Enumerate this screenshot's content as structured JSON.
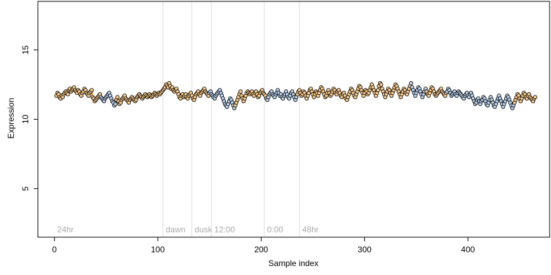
{
  "chart_data": {
    "type": "scatter",
    "title": "",
    "xlabel": "Sample index",
    "ylabel": "Expression",
    "xlim": [
      -16,
      479
    ],
    "ylim": [
      1.5,
      18.5
    ],
    "x_ticks": [
      0,
      100,
      200,
      300,
      400
    ],
    "y_ticks": [
      5,
      10,
      15
    ],
    "grid": false,
    "legend": "none",
    "colors": {
      "point_stroke": "#000000",
      "light_orange": "#f8c98a",
      "light_blue": "#b8d0ec",
      "orange_line": "#f5a623",
      "blue_line": "#7fa6d6",
      "region_line": "#dddddd",
      "region_label": "#aaaaaa"
    },
    "regions": [
      {
        "label": "24hr",
        "x": 0
      },
      {
        "label": "dawn",
        "x": 105
      },
      {
        "label": "dusk",
        "x": 133
      },
      {
        "label": "12:00",
        "x": 152
      },
      {
        "label": "0:00",
        "x": 203
      },
      {
        "label": "48hr",
        "x": 237
      }
    ],
    "series": [
      {
        "values_y": [
          11.7,
          11.9,
          11.8,
          11.6,
          11.5,
          11.7,
          11.6,
          11.8,
          11.9,
          12.0,
          11.9,
          11.8,
          12.1,
          12.2,
          12.0,
          12.1,
          12.2,
          12.3,
          12.1,
          12.0,
          11.9,
          12.1,
          12.0,
          11.8,
          11.7,
          11.9,
          12.0,
          12.2,
          12.1,
          11.9,
          11.8,
          11.7,
          11.9,
          12.0,
          12.1,
          11.6,
          11.5,
          11.3,
          11.4,
          11.5,
          11.6,
          11.7,
          11.8,
          11.6,
          11.5,
          11.4,
          11.3,
          11.5,
          11.6,
          11.7,
          11.8,
          11.9,
          11.7,
          11.5,
          11.3,
          11.2,
          11.0,
          11.1,
          11.4,
          11.6,
          11.3,
          11.1,
          11.2,
          11.4,
          11.5,
          11.6,
          11.7,
          11.5,
          11.4,
          11.3,
          11.2,
          11.4,
          11.5,
          11.6,
          11.5,
          11.4,
          11.3,
          11.4,
          11.6,
          11.7,
          11.8,
          11.7,
          11.6,
          11.5,
          11.6,
          11.7,
          11.8,
          11.7,
          11.6,
          11.7,
          11.8,
          11.7,
          11.6,
          11.7,
          11.8,
          11.9,
          11.8,
          11.7,
          11.8,
          11.9,
          11.8,
          11.9,
          12.0,
          12.1,
          12.2,
          12.3,
          12.5,
          12.4,
          12.3,
          12.6,
          12.4,
          12.2,
          12.3,
          12.1,
          12.0,
          12.1,
          12.2,
          12.0,
          11.8,
          11.6,
          11.5,
          11.7,
          11.8,
          11.6,
          11.7,
          11.8,
          11.6,
          11.5,
          11.7,
          11.8,
          11.9,
          11.7,
          11.5,
          11.4,
          11.6,
          11.8,
          11.9,
          12.0,
          11.8,
          11.7,
          11.9,
          12.0,
          12.1,
          12.2,
          12.0,
          11.9,
          11.8,
          11.7,
          11.9,
          12.0,
          11.8,
          11.7,
          11.6,
          11.5,
          11.7,
          11.8,
          11.9,
          12.0,
          12.1,
          11.9,
          11.7,
          11.5,
          11.3,
          11.1,
          11.0,
          10.9,
          11.1,
          11.3,
          11.5,
          11.4,
          11.2,
          11.0,
          10.8,
          11.0,
          11.2,
          11.4,
          11.6,
          11.8,
          12.0,
          11.7,
          11.5,
          11.3,
          11.5,
          11.7,
          11.9,
          12.0,
          11.9,
          11.8,
          11.9,
          12.0,
          11.8,
          11.7,
          11.9,
          12.0,
          11.8,
          11.6,
          11.7,
          11.9,
          12.0,
          12.1,
          11.9,
          11.8,
          11.7,
          11.5,
          11.4,
          11.6,
          11.8,
          11.9,
          12.0,
          11.8,
          11.7,
          11.6,
          11.8,
          11.9,
          12.1,
          11.9,
          11.7,
          11.8,
          11.6,
          11.5,
          11.7,
          11.8,
          12.0,
          11.8,
          11.6,
          11.5,
          11.7,
          11.9,
          12.0,
          11.8,
          11.6,
          11.4,
          11.6,
          11.8,
          12.0,
          12.1,
          11.9,
          11.7,
          11.8,
          12.0,
          11.9,
          11.7,
          11.5,
          11.7,
          11.9,
          12.1,
          12.2,
          12.0,
          11.8,
          11.6,
          11.8,
          12.0,
          11.9,
          11.7,
          11.9,
          12.1,
          12.3,
          12.2,
          12.0,
          11.8,
          11.6,
          11.7,
          11.9,
          12.1,
          11.9,
          11.7,
          11.8,
          12.0,
          12.2,
          12.1,
          11.9,
          11.8,
          12.0,
          12.1,
          11.9,
          11.7,
          11.6,
          11.8,
          11.9,
          11.7,
          11.5,
          11.4,
          11.6,
          11.8,
          12.0,
          12.2,
          12.1,
          11.9,
          11.7,
          11.6,
          11.8,
          12.0,
          12.2,
          12.4,
          12.3,
          12.1,
          11.9,
          11.7,
          11.9,
          12.1,
          12.0,
          11.8,
          11.9,
          12.1,
          12.3,
          12.5,
          12.3,
          12.1,
          11.9,
          11.7,
          11.9,
          12.1,
          12.4,
          12.6,
          12.5,
          12.2,
          12.0,
          11.8,
          11.6,
          11.8,
          12.0,
          12.2,
          12.1,
          11.9,
          11.7,
          11.9,
          12.1,
          12.3,
          12.5,
          12.4,
          12.2,
          12.0,
          11.8,
          11.6,
          11.8,
          12.0,
          12.2,
          12.1,
          11.9,
          11.8,
          12.0,
          12.2,
          12.4,
          12.6,
          12.3,
          12.1,
          11.9,
          11.7,
          11.9,
          12.1,
          12.3,
          12.2,
          12.0,
          11.8,
          11.6,
          11.8,
          12.0,
          12.2,
          12.0,
          11.8,
          11.7,
          11.9,
          12.1,
          12.3,
          12.2,
          12.0,
          11.8,
          11.7,
          11.8,
          11.9,
          12.0,
          12.1,
          12.2,
          12.0,
          11.9,
          11.8,
          11.7,
          11.9,
          12.0,
          12.2,
          12.1,
          11.9,
          11.7,
          11.8,
          11.9,
          12.0,
          11.8,
          11.7,
          11.9,
          12.0,
          11.9,
          11.8,
          11.7,
          11.6,
          11.5,
          11.7,
          11.8,
          11.9,
          11.7,
          11.6,
          11.8,
          11.9,
          11.7,
          11.5,
          11.3,
          11.1,
          11.2,
          11.4,
          11.5,
          11.3,
          11.1,
          11.3,
          11.4,
          11.6,
          11.5,
          11.3,
          11.1,
          11.0,
          11.2,
          11.4,
          11.6,
          11.4,
          11.2,
          11.0,
          10.9,
          11.1,
          11.3,
          11.5,
          11.7,
          11.5,
          11.3,
          11.1,
          10.9,
          11.1,
          11.3,
          11.5,
          11.7,
          11.6,
          11.4,
          11.2,
          11.0,
          10.8,
          11.0,
          11.2,
          11.4,
          11.6,
          11.8,
          11.7,
          11.5,
          11.3,
          11.5,
          11.7,
          11.9,
          11.8,
          11.6,
          11.5,
          11.7,
          11.8,
          11.6,
          11.5,
          11.4,
          11.3,
          11.5,
          11.6
        ]
      }
    ]
  }
}
